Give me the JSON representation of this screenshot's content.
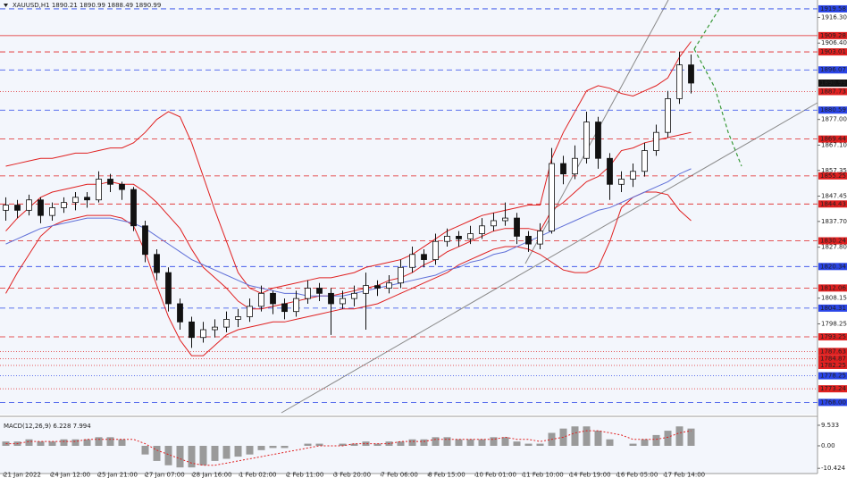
{
  "chart_data": {
    "type": "candlestick",
    "title": "XAUUSD,H1  1890.21 1890.99 1888.49 1890.99",
    "ylim": [
      1764,
      1923
    ],
    "yticks": [
      {
        "value": 1916.3,
        "label": "1916.30"
      },
      {
        "value": 1906.4,
        "label": "1906.40"
      },
      {
        "value": 1877,
        "label": "1877.00"
      },
      {
        "value": 1867.1,
        "label": "1867.10"
      },
      1857.35,
      1847.45,
      {
        "value": 1837.7,
        "label": "1837.70"
      },
      {
        "value": 1827.8,
        "label": "1827.80"
      },
      1808.15,
      1798.25
    ],
    "xlabels": [
      "21 Jan 2022",
      "24 Jan 12:00",
      "25 Jan 21:00",
      "27 Jan 07:00",
      "28 Jan 16:00",
      "1 Feb 02:00",
      "2 Feb 11:00",
      "3 Feb 20:00",
      "7 Feb 06:00",
      "8 Feb 15:00",
      "10 Feb 01:00",
      "11 Feb 10:00",
      "14 Feb 19:00",
      "16 Feb 05:00",
      "17 Feb 14:00"
    ],
    "current": 1890.99,
    "levels": [
      {
        "value": 1919.58,
        "color": "#2a45e8",
        "style": "dashed"
      },
      {
        "value": 1909.28,
        "color": "#e02020",
        "style": "solid"
      },
      {
        "value": 1903.01,
        "color": "#e02020",
        "style": "dashed"
      },
      {
        "value": 1896.07,
        "color": "#2a45e8",
        "style": "dashed"
      },
      {
        "value": 1887.73,
        "color": "#e02020",
        "style": "dotted"
      },
      {
        "value": 1880.59,
        "color": "#2a45e8",
        "style": "dashed"
      },
      {
        "value": 1869.44,
        "color": "#e02020",
        "style": "dashed"
      },
      {
        "value": 1855.25,
        "color": "#e02020",
        "style": "dashed"
      },
      {
        "value": 1844.43,
        "color": "#e02020",
        "style": "dashed"
      },
      {
        "value": 1830.24,
        "color": "#e02020",
        "style": "dashed"
      },
      {
        "value": 1820.34,
        "color": "#2a45e8",
        "style": "dashed"
      },
      {
        "value": 1812.06,
        "color": "#e02020",
        "style": "dashed"
      },
      {
        "value": 1804.31,
        "color": "#2a45e8",
        "style": "dashed"
      },
      {
        "value": 1793.25,
        "color": "#e02020",
        "style": "dashed"
      },
      {
        "value": 1787.63,
        "color": "#e02020",
        "style": "dotted"
      },
      {
        "value": 1784.87,
        "color": "#e02020",
        "style": "dotted"
      },
      {
        "value": 1782.25,
        "color": "#e02020",
        "style": "dotted"
      },
      {
        "value": 1778.25,
        "color": "#2a45e8",
        "style": "dotted"
      },
      {
        "value": 1773.24,
        "color": "#e02020",
        "style": "dotted"
      },
      {
        "value": 1768,
        "label": "1768.00",
        "color": "#2a45e8",
        "style": "dashed"
      }
    ],
    "candles": [
      [
        1842,
        1847,
        1838,
        1844
      ],
      [
        1844,
        1846,
        1839,
        1842
      ],
      [
        1842,
        1848,
        1840,
        1846
      ],
      [
        1846,
        1847,
        1837,
        1840
      ],
      [
        1840,
        1845,
        1838,
        1843
      ],
      [
        1843,
        1847,
        1841,
        1845
      ],
      [
        1845,
        1849,
        1842,
        1847
      ],
      [
        1847,
        1849,
        1843,
        1846
      ],
      [
        1846,
        1857,
        1845,
        1854
      ],
      [
        1854,
        1856,
        1849,
        1852
      ],
      [
        1852,
        1853,
        1846,
        1850
      ],
      [
        1850,
        1851,
        1834,
        1836
      ],
      [
        1836,
        1838,
        1822,
        1825
      ],
      [
        1825,
        1827,
        1815,
        1818
      ],
      [
        1818,
        1820,
        1803,
        1806
      ],
      [
        1806,
        1808,
        1796,
        1799
      ],
      [
        1799,
        1801,
        1789,
        1793
      ],
      [
        1793,
        1799,
        1791,
        1796
      ],
      [
        1796,
        1800,
        1793,
        1797
      ],
      [
        1797,
        1803,
        1795,
        1800
      ],
      [
        1800,
        1804,
        1797,
        1801
      ],
      [
        1801,
        1808,
        1799,
        1805
      ],
      [
        1805,
        1813,
        1803,
        1810
      ],
      [
        1810,
        1811,
        1802,
        1806
      ],
      [
        1806,
        1808,
        1800,
        1803
      ],
      [
        1803,
        1811,
        1801,
        1808
      ],
      [
        1808,
        1815,
        1806,
        1812
      ],
      [
        1812,
        1814,
        1807,
        1810
      ],
      [
        1810,
        1812,
        1794,
        1806
      ],
      [
        1806,
        1811,
        1804,
        1808
      ],
      [
        1808,
        1813,
        1805,
        1810
      ],
      [
        1810,
        1818,
        1796,
        1813
      ],
      [
        1813,
        1815,
        1809,
        1812
      ],
      [
        1812,
        1817,
        1810,
        1814
      ],
      [
        1814,
        1823,
        1812,
        1820
      ],
      [
        1820,
        1828,
        1818,
        1825
      ],
      [
        1825,
        1827,
        1820,
        1823
      ],
      [
        1823,
        1833,
        1821,
        1830
      ],
      [
        1830,
        1835,
        1828,
        1832
      ],
      [
        1832,
        1834,
        1828,
        1831
      ],
      [
        1831,
        1836,
        1829,
        1833
      ],
      [
        1833,
        1839,
        1831,
        1836
      ],
      [
        1836,
        1841,
        1834,
        1838
      ],
      [
        1838,
        1845,
        1836,
        1839
      ],
      [
        1839,
        1841,
        1829,
        1832
      ],
      [
        1832,
        1834,
        1826,
        1829
      ],
      [
        1829,
        1837,
        1827,
        1834
      ],
      [
        1834,
        1866,
        1833,
        1860
      ],
      [
        1860,
        1863,
        1852,
        1856
      ],
      [
        1856,
        1867,
        1854,
        1862
      ],
      [
        1862,
        1880,
        1860,
        1876
      ],
      [
        1876,
        1878,
        1858,
        1862
      ],
      [
        1862,
        1864,
        1846,
        1852
      ],
      [
        1852,
        1857,
        1849,
        1854
      ],
      [
        1854,
        1860,
        1851,
        1857
      ],
      [
        1857,
        1868,
        1855,
        1865
      ],
      [
        1865,
        1875,
        1863,
        1872
      ],
      [
        1872,
        1888,
        1870,
        1885
      ],
      [
        1885,
        1903,
        1883,
        1898
      ],
      [
        1898,
        1902,
        1887,
        1891
      ]
    ],
    "candle_color": "#111111",
    "series": [
      {
        "color": "#e02020",
        "values": [
          1859,
          1860,
          1861,
          1862,
          1862,
          1863,
          1864,
          1864,
          1865,
          1866,
          1866,
          1868,
          1872,
          1877,
          1880,
          1878,
          1868,
          1855,
          1842,
          1830,
          1818,
          1812,
          1810,
          1812,
          1813,
          1814,
          1815,
          1816,
          1816,
          1817,
          1818,
          1820,
          1821,
          1822,
          1823,
          1825,
          1828,
          1831,
          1834,
          1836,
          1838,
          1840,
          1841,
          1842,
          1843,
          1844,
          1844,
          1862,
          1872,
          1880,
          1888,
          1890,
          1889,
          1887,
          1886,
          1888,
          1890,
          1893,
          1901,
          1907
        ]
      },
      {
        "color": "#e02020",
        "values": [
          1834,
          1839,
          1843,
          1847,
          1849,
          1850,
          1851,
          1852,
          1852,
          1853,
          1852,
          1852,
          1849,
          1845,
          1840,
          1835,
          1827,
          1820,
          1816,
          1812,
          1807,
          1804,
          1804,
          1805,
          1806,
          1807,
          1808,
          1809,
          1809,
          1810,
          1811,
          1812,
          1813,
          1815,
          1816,
          1818,
          1821,
          1823,
          1826,
          1828,
          1830,
          1832,
          1834,
          1835,
          1835,
          1835,
          1834,
          1842,
          1845,
          1849,
          1853,
          1855,
          1859,
          1865,
          1866,
          1868,
          1869,
          1870,
          1871,
          1872
        ]
      },
      {
        "color": "#e02020",
        "values": [
          1810,
          1818,
          1825,
          1832,
          1836,
          1838,
          1839,
          1840,
          1840,
          1840,
          1839,
          1836,
          1826,
          1813,
          1801,
          1792,
          1786,
          1786,
          1790,
          1794,
          1796,
          1797,
          1798,
          1799,
          1799,
          1800,
          1801,
          1802,
          1803,
          1804,
          1804,
          1805,
          1806,
          1808,
          1810,
          1812,
          1814,
          1816,
          1818,
          1821,
          1823,
          1825,
          1827,
          1828,
          1828,
          1827,
          1825,
          1822,
          1819,
          1818,
          1818,
          1820,
          1830,
          1843,
          1847,
          1849,
          1849,
          1848,
          1842,
          1838
        ]
      },
      {
        "color": "#6070d8",
        "values": [
          1829,
          1831,
          1833,
          1835,
          1836,
          1837,
          1838,
          1839,
          1839,
          1839,
          1838,
          1837,
          1835,
          1832,
          1829,
          1826,
          1823,
          1821,
          1819,
          1817,
          1815,
          1813,
          1812,
          1811,
          1810,
          1810,
          1809,
          1809,
          1809,
          1809,
          1810,
          1811,
          1812,
          1813,
          1814,
          1815,
          1816,
          1817,
          1819,
          1820,
          1822,
          1823,
          1825,
          1826,
          1828,
          1830,
          1832,
          1834,
          1836,
          1838,
          1840,
          1842,
          1843,
          1845,
          1847,
          1849,
          1851,
          1853,
          1856,
          1858
        ]
      }
    ],
    "macd": {
      "title": "MACD(12,26,9) 6.228 7.994",
      "ylim": [
        -12,
        12
      ],
      "yticks": [
        9.533,
        {
          "value": 0,
          "label": "0.00"
        },
        -10.424
      ],
      "hist_color": "#9a9a9a",
      "signal_color": "#e02020",
      "values": [
        2,
        2,
        3,
        2,
        2,
        3,
        3,
        3,
        4,
        4,
        3,
        0,
        -4,
        -7,
        -9,
        -10,
        -10,
        -9,
        -7,
        -6,
        -5,
        -4,
        -2,
        -1,
        -1,
        0,
        1,
        1,
        0,
        1,
        1,
        2,
        1,
        2,
        2,
        3,
        3,
        4,
        4,
        3,
        3,
        3,
        4,
        4,
        2,
        1,
        1,
        6,
        8,
        9,
        9,
        7,
        3,
        0,
        1,
        3,
        5,
        7,
        9,
        8
      ],
      "signal": [
        1,
        1,
        2,
        2,
        2,
        2,
        2,
        3,
        3,
        3,
        3,
        3,
        1,
        -2,
        -4,
        -6,
        -8,
        -9,
        -9,
        -8,
        -7,
        -6,
        -5,
        -4,
        -3,
        -2,
        -1,
        0,
        0,
        0,
        1,
        1,
        1,
        1,
        2,
        2,
        2,
        3,
        3,
        3,
        3,
        3,
        3,
        4,
        3,
        3,
        2,
        3,
        4,
        6,
        7,
        7,
        6,
        5,
        3,
        3,
        3,
        4,
        6,
        7
      ]
    }
  }
}
